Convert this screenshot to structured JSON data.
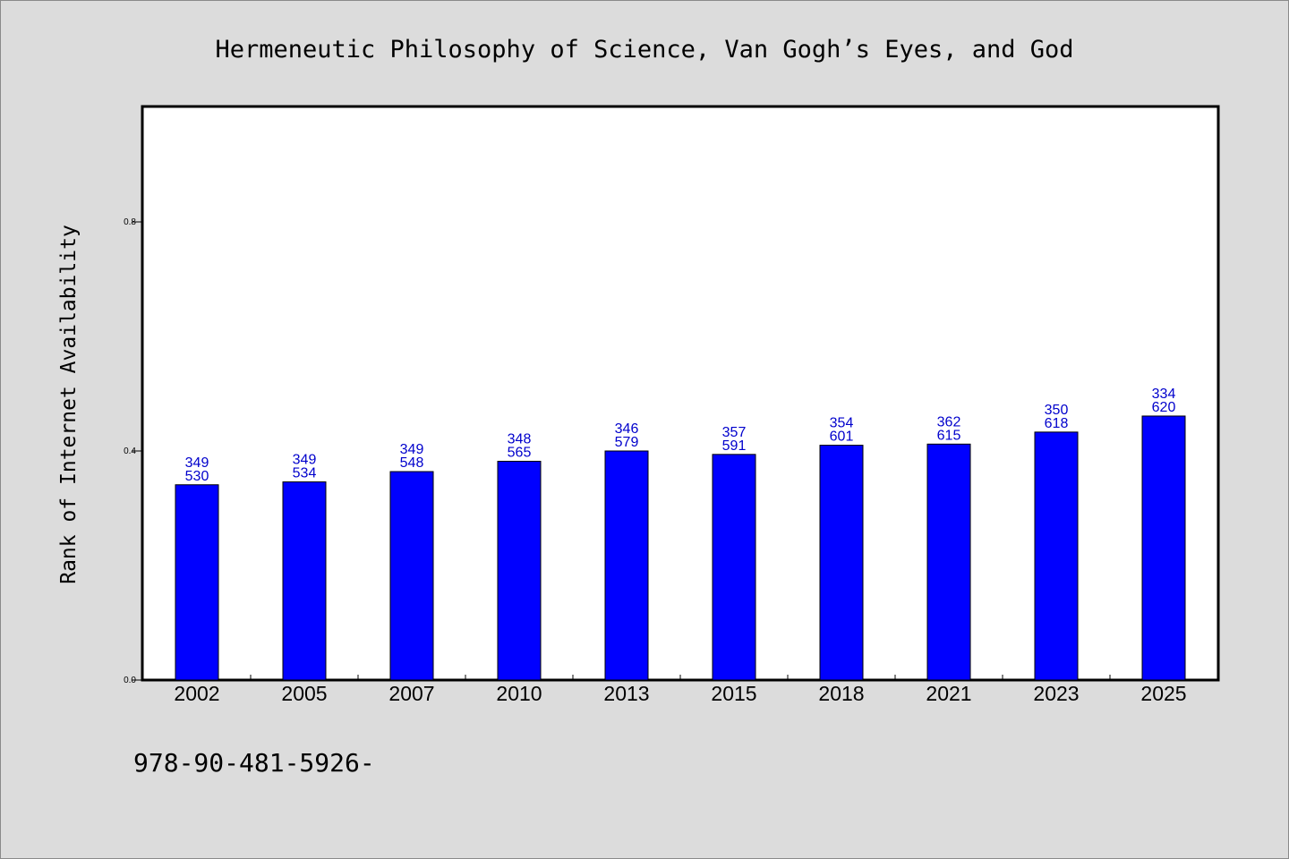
{
  "chart_data": {
    "type": "bar",
    "title": "Hermeneutic Philosophy of Science, Van Gogh’s Eyes, and God",
    "ylabel": "Rank of Internet Availability",
    "xlabel": "",
    "categories": [
      "2002",
      "2005",
      "2007",
      "2010",
      "2013",
      "2015",
      "2018",
      "2021",
      "2023",
      "2025"
    ],
    "values": [
      0.341,
      0.346,
      0.364,
      0.382,
      0.4,
      0.394,
      0.41,
      0.412,
      0.433,
      0.461
    ],
    "label_top": [
      "349",
      "349",
      "349",
      "348",
      "346",
      "357",
      "354",
      "362",
      "350",
      "334"
    ],
    "label_bottom": [
      "530",
      "534",
      "548",
      "565",
      "579",
      "591",
      "601",
      "615",
      "618",
      "620"
    ],
    "ylim": [
      0,
      1.0
    ],
    "yticks": [
      "0.0",
      "0.4",
      "0.8"
    ],
    "ytick_values": [
      0.0,
      0.4,
      0.8
    ],
    "grid": false,
    "bar_color": "#0000ff",
    "label_color": "#0000cc",
    "background_color": "#dcdcdc"
  },
  "footer": {
    "isbn": "978-90-481-5926-"
  }
}
